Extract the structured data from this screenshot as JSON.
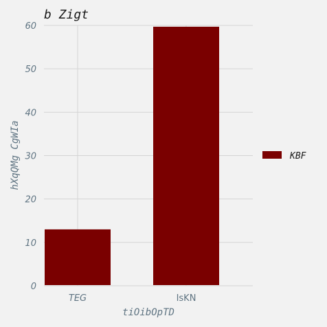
{
  "chart_data": {
    "type": "bar",
    "title": "b Zigt",
    "xlabel": "tiOibOpTD",
    "ylabel": "hXqQMg CgWIa",
    "categories": [
      "TEG",
      "IsKN"
    ],
    "series": [
      {
        "name": "KBF",
        "values": [
          13,
          59.7
        ],
        "color": "#7a0000"
      }
    ],
    "ylim": [
      0,
      60
    ],
    "yticks": [
      0,
      10,
      20,
      30,
      40,
      50,
      60
    ],
    "grid": true,
    "legend_position": "right"
  }
}
